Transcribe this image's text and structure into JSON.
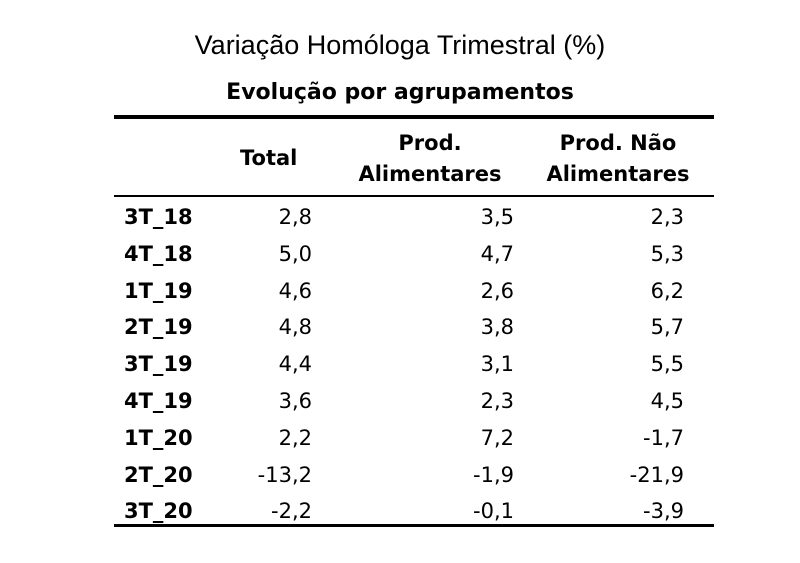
{
  "header": {
    "title": "Variação Homóloga Trimestral (%)",
    "subtitle": "Evolução por agrupamentos"
  },
  "columns": {
    "label": "",
    "total": "Total",
    "alimentares": "Prod.\nAlimentares",
    "nao_alimentares": "Prod. Não\nAlimentares"
  },
  "chart_data": {
    "type": "table",
    "title": "Variação Homóloga Trimestral (%)",
    "subtitle": "Evolução por agrupamentos",
    "columns": [
      "",
      "Total",
      "Prod. Alimentares",
      "Prod. Não Alimentares"
    ],
    "rows": [
      [
        "3T_18",
        "2,8",
        "3,5",
        "2,3"
      ],
      [
        "4T_18",
        "5,0",
        "4,7",
        "5,3"
      ],
      [
        "1T_19",
        "4,6",
        "2,6",
        "6,2"
      ],
      [
        "2T_19",
        "4,8",
        "3,8",
        "5,7"
      ],
      [
        "3T_19",
        "4,4",
        "3,1",
        "5,5"
      ],
      [
        "4T_19",
        "3,6",
        "2,3",
        "4,5"
      ],
      [
        "1T_20",
        "2,2",
        "7,2",
        "-1,7"
      ],
      [
        "2T_20",
        "-13,2",
        "-1,9",
        "-21,9"
      ],
      [
        "3T_20",
        "-2,2",
        "-0,1",
        "-3,9"
      ]
    ]
  }
}
